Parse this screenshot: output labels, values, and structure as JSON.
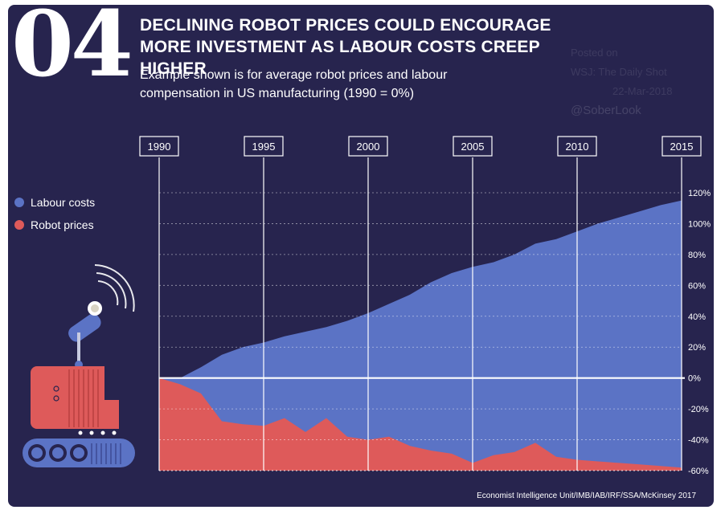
{
  "header": {
    "number": "04",
    "title": "DECLINING ROBOT PRICES COULD ENCOURAGE MORE INVESTMENT AS LABOUR COSTS CREEP HIGHER",
    "subtitle": "Example shown is for average robot prices and labour compensation in US manufacturing (1990 = 0%)"
  },
  "watermark": {
    "line1": "Posted on",
    "line2": "WSJ: The Daily Shot",
    "line3": "22-Mar-2018",
    "handle": "@SoberLook"
  },
  "source": "Economist Intelligence Unit/IMB/IAB/IRF/SSA/McKinsey 2017",
  "colors": {
    "background": "#27244e",
    "labour": "#5b73c5",
    "robot": "#de5a5a"
  },
  "chart_data": {
    "type": "area",
    "title": "DECLINING ROBOT PRICES COULD ENCOURAGE MORE INVESTMENT AS LABOUR COSTS CREEP HIGHER",
    "subtitle": "Example shown is for average robot prices and labour compensation in US manufacturing (1990 = 0%)",
    "x_ticks": [
      "1990",
      "1995",
      "2000",
      "2005",
      "2010",
      "2015"
    ],
    "x_range": [
      1990,
      2015
    ],
    "y_ticks": [
      "120%",
      "100%",
      "80%",
      "60%",
      "40%",
      "20%",
      "0%",
      "-20%",
      "-40%",
      "-60%"
    ],
    "ylim": [
      -60,
      120
    ],
    "legend": [
      "Labour costs",
      "Robot prices"
    ],
    "legend_position": "left",
    "grid": true,
    "series": [
      {
        "name": "Labour costs",
        "x": [
          1990,
          1991,
          1992,
          1993,
          1994,
          1995,
          1996,
          1997,
          1998,
          1999,
          2000,
          2001,
          2002,
          2003,
          2004,
          2005,
          2006,
          2007,
          2008,
          2009,
          2010,
          2011,
          2012,
          2013,
          2014,
          2015
        ],
        "values": [
          0,
          0,
          7,
          15,
          20,
          23,
          27,
          30,
          33,
          37,
          42,
          48,
          54,
          62,
          68,
          72,
          75,
          80,
          87,
          90,
          95,
          100,
          104,
          108,
          112,
          115
        ]
      },
      {
        "name": "Robot prices",
        "x": [
          1990,
          1991,
          1992,
          1993,
          1994,
          1995,
          1996,
          1997,
          1998,
          1999,
          2000,
          2001,
          2002,
          2003,
          2004,
          2005,
          2006,
          2007,
          2008,
          2009,
          2010,
          2011,
          2012,
          2013,
          2014,
          2015
        ],
        "values": [
          0,
          -4,
          -10,
          -28,
          -30,
          -31,
          -26,
          -35,
          -26,
          -38,
          -40,
          -38,
          -44,
          -47,
          -49,
          -55,
          -50,
          -48,
          -42,
          -51,
          -53,
          -54,
          -55,
          -56,
          -57,
          -58
        ]
      }
    ]
  }
}
